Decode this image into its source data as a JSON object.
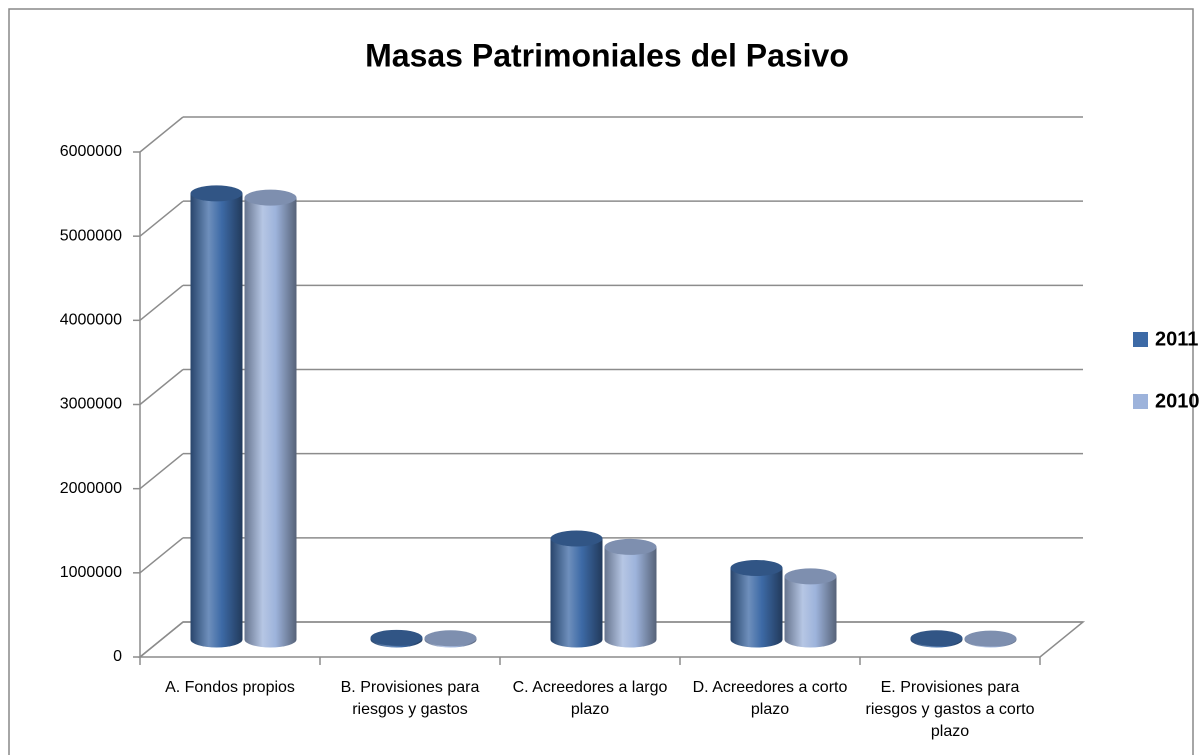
{
  "chart_data": {
    "type": "bar3d",
    "title": "Masas Patrimoniales del Pasivo",
    "categories": [
      "A. Fondos propios",
      "B. Provisiones para riesgos y gastos",
      "C. Acreedores a largo plazo",
      "D. Acreedores a corto plazo",
      "E. Provisiones para riesgos y gastos a corto plazo"
    ],
    "series": [
      {
        "name": "2011",
        "color": "#3d6aa6",
        "values": [
          5300000,
          20000,
          1200000,
          850000,
          15000
        ]
      },
      {
        "name": "2010",
        "color": "#9db3db",
        "values": [
          5250000,
          15000,
          1100000,
          750000,
          10000
        ]
      }
    ],
    "ylim": [
      0,
      6000000
    ],
    "yticks": [
      0,
      1000000,
      2000000,
      3000000,
      4000000,
      5000000,
      6000000
    ],
    "grid": true,
    "legend": "right"
  }
}
